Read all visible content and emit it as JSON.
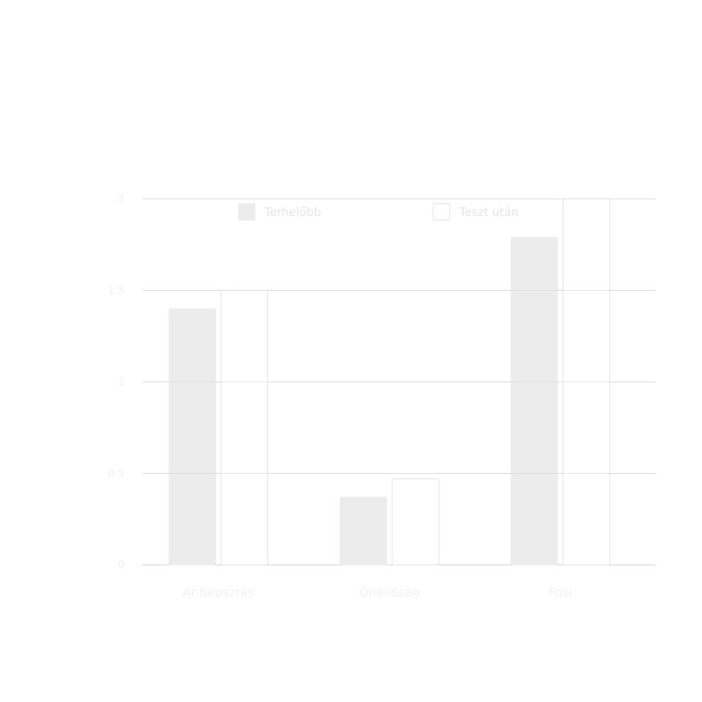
{
  "chart_data": {
    "type": "bar",
    "title": "",
    "subtitle": "",
    "xlabel": "",
    "ylabel": "",
    "categories": [
      "Ár-beosztás",
      "Önállóság",
      "Fizu"
    ],
    "series": [
      {
        "name": "Terhelőbb",
        "values": [
          1.4,
          0.37,
          1.79
        ]
      },
      {
        "name": "Teszt után",
        "values": [
          1.5,
          0.47,
          2.0
        ]
      }
    ],
    "ylim": [
      0,
      2
    ],
    "yticks": [
      "0",
      "0.5",
      "1",
      "1.5",
      "2"
    ],
    "ytick_values": [
      0,
      0.5,
      1,
      1.5,
      2
    ],
    "grid": true,
    "legend_position": "top",
    "colors": {
      "series_fill": [
        "#ececec",
        "#ffffff"
      ],
      "series_stroke": [
        "#ececec",
        "#e0e0e0"
      ],
      "grid": "#d4d4d4",
      "axis": "#cccccc",
      "text": "#f2f2f2",
      "legend_text": "#e6e6e6",
      "title": "#f3f3f3"
    }
  },
  "footer": {
    "source_label": "",
    "note": ""
  }
}
